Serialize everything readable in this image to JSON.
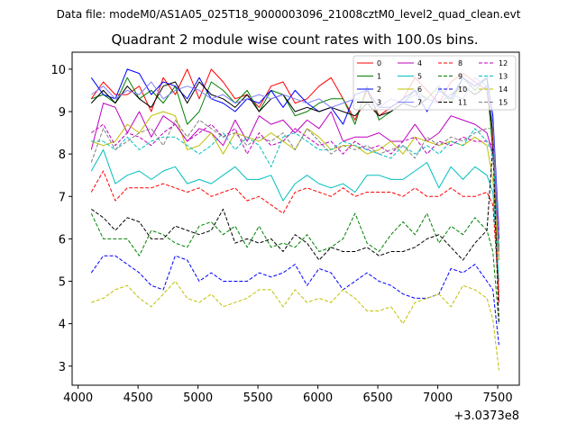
{
  "chart_data": {
    "type": "line",
    "suptitle": "Data file: modeM0/AS1A05_025T18_9000003096_21008cztM0_level2_quad_clean.evt",
    "title": "Quadrant 2 module wise count rates with 100.0s bins.",
    "xlabel": "",
    "ylabel": "",
    "x_offset_label": "+3.0373e8",
    "xlim": [
      3950,
      7680
    ],
    "ylim": [
      2.55,
      10.4
    ],
    "xticks": [
      4000,
      4500,
      5000,
      5500,
      6000,
      6500,
      7000,
      7500
    ],
    "yticks": [
      3,
      4,
      5,
      6,
      7,
      8,
      9,
      10
    ],
    "legend_position": "upper right",
    "x": [
      4110,
      4210,
      4310,
      4410,
      4510,
      4610,
      4710,
      4810,
      4910,
      5010,
      5110,
      5210,
      5310,
      5410,
      5510,
      5610,
      5710,
      5810,
      5910,
      6010,
      6110,
      6210,
      6310,
      6410,
      6510,
      6610,
      6710,
      6810,
      6910,
      7010,
      7110,
      7210,
      7310,
      7410,
      7460,
      7510
    ],
    "series": [
      {
        "name": "0",
        "color": "#ff0000",
        "style": "solid",
        "values": [
          9.3,
          9.7,
          9.4,
          9.4,
          9.6,
          9.0,
          9.8,
          9.4,
          10.0,
          9.3,
          10.0,
          9.7,
          9.3,
          9.4,
          9.1,
          9.6,
          9.7,
          9.2,
          9.3,
          9.6,
          9.8,
          9.3,
          8.8,
          9.5,
          8.9,
          9.1,
          9.3,
          9.8,
          9.5,
          9.2,
          9.7,
          9.9,
          9.7,
          9.5,
          8.3,
          4.5
        ]
      },
      {
        "name": "1",
        "color": "#008000",
        "style": "solid",
        "values": [
          9.3,
          9.4,
          9.2,
          9.8,
          9.3,
          9.5,
          9.2,
          9.6,
          8.7,
          9.0,
          9.7,
          9.5,
          9.2,
          9.5,
          9.0,
          9.5,
          9.4,
          8.9,
          9.0,
          9.2,
          9.3,
          9.3,
          8.7,
          9.6,
          8.8,
          9.0,
          9.2,
          9.5,
          9.3,
          9.6,
          9.2,
          9.8,
          9.5,
          9.8,
          8.0,
          5.8
        ]
      },
      {
        "name": "2",
        "color": "#0000ff",
        "style": "solid",
        "values": [
          9.8,
          9.4,
          9.3,
          10.0,
          9.9,
          9.4,
          9.7,
          9.6,
          9.3,
          9.8,
          9.3,
          9.2,
          9.0,
          9.3,
          9.2,
          9.5,
          9.1,
          9.5,
          9.2,
          9.0,
          9.1,
          8.7,
          9.4,
          9.5,
          9.1,
          9.1,
          9.3,
          9.5,
          9.0,
          9.5,
          9.3,
          9.8,
          9.6,
          9.8,
          8.9,
          6.2
        ]
      },
      {
        "name": "3",
        "color": "#000000",
        "style": "solid",
        "values": [
          9.2,
          9.5,
          9.2,
          9.6,
          9.3,
          9.1,
          9.6,
          9.7,
          9.2,
          9.7,
          9.4,
          9.3,
          9.1,
          9.4,
          9.0,
          9.3,
          9.4,
          9.0,
          9.1,
          9.0,
          9.1,
          9.0,
          8.9,
          9.2,
          8.9,
          9.0,
          9.2,
          9.1,
          9.3,
          9.2,
          9.4,
          9.6,
          9.4,
          9.6,
          8.5,
          6.0
        ]
      },
      {
        "name": "4",
        "color": "#bf00bf",
        "style": "solid",
        "values": [
          8.1,
          9.2,
          9.1,
          8.5,
          9.0,
          8.4,
          8.9,
          8.7,
          8.3,
          8.6,
          8.5,
          8.2,
          8.8,
          8.3,
          8.9,
          8.7,
          8.8,
          8.5,
          8.8,
          8.6,
          9.0,
          8.3,
          8.4,
          8.4,
          8.5,
          8.3,
          8.3,
          8.7,
          8.3,
          8.5,
          8.9,
          8.8,
          8.7,
          8.5,
          8.0,
          5.7
        ]
      },
      {
        "name": "5",
        "color": "#00bfbf",
        "style": "solid",
        "values": [
          7.6,
          8.1,
          7.3,
          7.5,
          7.6,
          7.4,
          7.6,
          7.7,
          7.3,
          7.4,
          7.3,
          7.5,
          7.7,
          7.4,
          7.4,
          7.5,
          6.9,
          7.3,
          7.5,
          7.3,
          7.2,
          7.3,
          7.1,
          7.5,
          7.5,
          7.4,
          7.4,
          7.6,
          7.8,
          7.2,
          7.7,
          7.4,
          7.7,
          7.5,
          7.1,
          5.0
        ]
      },
      {
        "name": "6",
        "color": "#bfbf00",
        "style": "solid",
        "values": [
          8.3,
          8.2,
          8.3,
          8.7,
          8.5,
          8.9,
          9.0,
          8.9,
          8.1,
          8.2,
          8.5,
          8.0,
          8.5,
          8.4,
          8.3,
          8.5,
          8.3,
          8.1,
          8.6,
          8.4,
          8.1,
          8.2,
          8.2,
          8.0,
          8.1,
          8.3,
          8.0,
          8.4,
          8.3,
          8.2,
          8.3,
          8.2,
          8.4,
          8.2,
          7.4,
          5.5
        ]
      },
      {
        "name": "7",
        "color": "#8080ff",
        "style": "solid",
        "values": [
          9.4,
          9.6,
          9.3,
          9.5,
          9.4,
          9.7,
          9.3,
          9.5,
          9.6,
          9.5,
          9.3,
          9.4,
          9.2,
          9.3,
          9.4,
          9.3,
          9.4,
          9.3,
          9.2,
          9.3,
          9.1,
          9.2,
          9.3,
          9.2,
          9.1,
          9.3,
          9.2,
          9.4,
          9.3,
          9.2,
          9.4,
          9.3,
          9.8,
          9.6,
          8.7,
          6.1
        ]
      },
      {
        "name": "8",
        "color": "#ff0000",
        "style": "dashed",
        "values": [
          7.1,
          7.6,
          6.9,
          7.2,
          7.2,
          7.2,
          7.3,
          7.2,
          7.1,
          7.2,
          7.0,
          7.1,
          7.2,
          6.9,
          7.0,
          6.8,
          6.6,
          7.1,
          7.2,
          7.1,
          7.0,
          7.2,
          7.0,
          7.1,
          7.1,
          7.1,
          7.0,
          7.2,
          7.0,
          7.0,
          7.2,
          7.0,
          7.0,
          7.1,
          6.8,
          4.7
        ]
      },
      {
        "name": "9",
        "color": "#008000",
        "style": "dashed",
        "values": [
          6.6,
          6.0,
          6.0,
          6.0,
          5.6,
          6.2,
          6.1,
          5.9,
          5.8,
          6.3,
          6.4,
          6.1,
          6.3,
          5.8,
          6.3,
          5.8,
          5.9,
          5.8,
          6.1,
          5.7,
          5.8,
          6.0,
          6.6,
          5.9,
          5.7,
          6.1,
          6.4,
          6.1,
          6.6,
          5.9,
          6.3,
          6.1,
          6.5,
          6.2,
          5.7,
          4.0
        ]
      },
      {
        "name": "10",
        "color": "#0000ff",
        "style": "dashed",
        "values": [
          5.2,
          5.6,
          5.6,
          5.4,
          5.2,
          4.9,
          4.8,
          5.6,
          5.5,
          5.0,
          5.2,
          5.0,
          5.0,
          5.0,
          5.2,
          5.1,
          5.2,
          5.4,
          4.9,
          5.3,
          5.2,
          4.8,
          5.0,
          5.2,
          5.0,
          4.9,
          4.7,
          4.6,
          4.6,
          4.7,
          5.3,
          5.2,
          5.4,
          5.0,
          4.8,
          3.5
        ]
      },
      {
        "name": "11",
        "color": "#000000",
        "style": "dashed",
        "values": [
          6.7,
          6.5,
          6.2,
          6.5,
          6.4,
          6.0,
          6.0,
          6.3,
          6.2,
          6.1,
          6.2,
          6.7,
          5.9,
          6.0,
          5.9,
          6.0,
          5.7,
          6.1,
          5.9,
          5.5,
          5.8,
          5.7,
          5.7,
          5.8,
          5.6,
          5.7,
          5.7,
          5.8,
          6.0,
          6.1,
          5.8,
          5.5,
          5.9,
          6.2,
          8.2,
          4.0
        ]
      },
      {
        "name": "12",
        "color": "#bf00bf",
        "style": "dashed",
        "values": [
          8.5,
          8.7,
          8.2,
          8.5,
          8.4,
          8.2,
          8.5,
          8.7,
          8.3,
          8.5,
          8.7,
          8.4,
          8.6,
          8.0,
          8.5,
          8.2,
          8.3,
          8.6,
          8.4,
          8.2,
          8.3,
          8.0,
          8.3,
          8.1,
          8.2,
          8.0,
          8.3,
          8.4,
          8.0,
          8.3,
          8.2,
          8.4,
          8.3,
          8.3,
          8.2,
          6.0
        ]
      },
      {
        "name": "13",
        "color": "#00bfbf",
        "style": "dashed",
        "values": [
          8.3,
          8.3,
          8.1,
          8.4,
          8.1,
          8.3,
          8.4,
          8.4,
          8.2,
          8.0,
          8.2,
          8.5,
          8.1,
          8.4,
          8.2,
          7.7,
          8.4,
          8.5,
          8.3,
          8.1,
          8.1,
          8.3,
          8.2,
          8.1,
          8.0,
          7.9,
          8.2,
          8.0,
          8.2,
          8.0,
          8.3,
          8.2,
          8.6,
          8.3,
          8.0,
          5.8
        ]
      },
      {
        "name": "14",
        "color": "#bfbf00",
        "style": "dashed",
        "values": [
          4.5,
          4.6,
          4.8,
          4.9,
          4.6,
          4.4,
          4.7,
          5.0,
          4.6,
          4.5,
          4.7,
          4.4,
          4.5,
          4.6,
          4.8,
          4.8,
          4.4,
          4.8,
          4.5,
          4.6,
          4.5,
          4.8,
          4.6,
          4.3,
          4.3,
          4.4,
          4.0,
          4.5,
          4.6,
          4.7,
          4.4,
          4.9,
          4.8,
          4.6,
          4.1,
          2.9
        ]
      },
      {
        "name": "15",
        "color": "#808080",
        "style": "dashed",
        "values": [
          7.8,
          8.6,
          8.1,
          8.3,
          8.5,
          8.6,
          8.2,
          8.8,
          8.4,
          8.8,
          8.6,
          8.4,
          8.5,
          8.2,
          8.4,
          8.3,
          8.5,
          8.1,
          8.6,
          8.3,
          8.0,
          8.2,
          8.1,
          8.2,
          8.0,
          8.1,
          8.2,
          7.9,
          8.4,
          8.2,
          8.4,
          8.3,
          8.5,
          8.6,
          8.6,
          5.5
        ]
      }
    ]
  }
}
